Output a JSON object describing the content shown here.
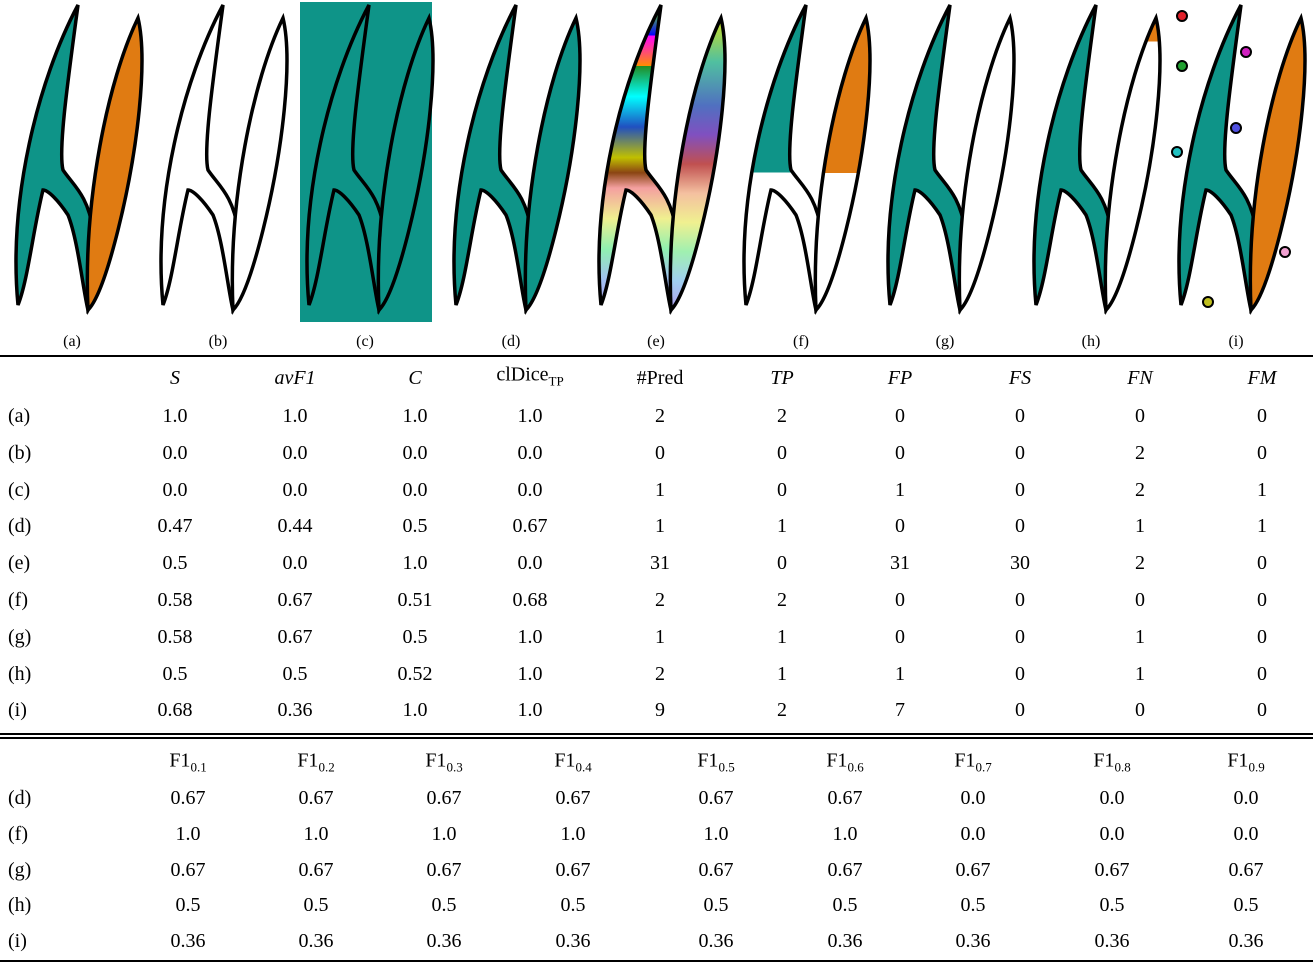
{
  "panels": [
    "(a)",
    "(b)",
    "(c)",
    "(d)",
    "(e)",
    "(f)",
    "(g)",
    "(h)",
    "(i)"
  ],
  "table1": {
    "header": [
      {
        "main": "S"
      },
      {
        "main": "avF1"
      },
      {
        "main": "C"
      },
      {
        "main": "clDice",
        "sub": "TP"
      },
      {
        "main": "#Pred"
      },
      {
        "main": "TP"
      },
      {
        "main": "FP"
      },
      {
        "main": "FS"
      },
      {
        "main": "FN"
      },
      {
        "main": "FM"
      }
    ],
    "rows": [
      [
        "(a)",
        "1.0",
        "1.0",
        "1.0",
        "1.0",
        "2",
        "2",
        "0",
        "0",
        "0",
        "0"
      ],
      [
        "(b)",
        "0.0",
        "0.0",
        "0.0",
        "0.0",
        "0",
        "0",
        "0",
        "0",
        "2",
        "0"
      ],
      [
        "(c)",
        "0.0",
        "0.0",
        "0.0",
        "0.0",
        "1",
        "0",
        "1",
        "0",
        "2",
        "1"
      ],
      [
        "(d)",
        "0.47",
        "0.44",
        "0.5",
        "0.67",
        "1",
        "1",
        "0",
        "0",
        "1",
        "1"
      ],
      [
        "(e)",
        "0.5",
        "0.0",
        "1.0",
        "0.0",
        "31",
        "0",
        "31",
        "30",
        "2",
        "0"
      ],
      [
        "(f)",
        "0.58",
        "0.67",
        "0.51",
        "0.68",
        "2",
        "2",
        "0",
        "0",
        "0",
        "0"
      ],
      [
        "(g)",
        "0.58",
        "0.67",
        "0.5",
        "1.0",
        "1",
        "1",
        "0",
        "0",
        "1",
        "0"
      ],
      [
        "(h)",
        "0.5",
        "0.5",
        "0.52",
        "1.0",
        "2",
        "1",
        "1",
        "0",
        "1",
        "0"
      ],
      [
        "(i)",
        "0.68",
        "0.36",
        "1.0",
        "1.0",
        "9",
        "2",
        "7",
        "0",
        "0",
        "0"
      ]
    ]
  },
  "table2": {
    "header": [
      {
        "main": "F1",
        "sub": "0.1"
      },
      {
        "main": "F1",
        "sub": "0.2"
      },
      {
        "main": "F1",
        "sub": "0.3"
      },
      {
        "main": "F1",
        "sub": "0.4"
      },
      {
        "main": "F1",
        "sub": "0.5"
      },
      {
        "main": "F1",
        "sub": "0.6"
      },
      {
        "main": "F1",
        "sub": "0.7"
      },
      {
        "main": "F1",
        "sub": "0.8"
      },
      {
        "main": "F1",
        "sub": "0.9"
      }
    ],
    "rows": [
      [
        "(d)",
        "0.67",
        "0.67",
        "0.67",
        "0.67",
        "0.67",
        "0.67",
        "0.0",
        "0.0",
        "0.0"
      ],
      [
        "(f)",
        "1.0",
        "1.0",
        "1.0",
        "1.0",
        "1.0",
        "1.0",
        "0.0",
        "0.0",
        "0.0"
      ],
      [
        "(g)",
        "0.67",
        "0.67",
        "0.67",
        "0.67",
        "0.67",
        "0.67",
        "0.67",
        "0.67",
        "0.67"
      ],
      [
        "(h)",
        "0.5",
        "0.5",
        "0.5",
        "0.5",
        "0.5",
        "0.5",
        "0.5",
        "0.5",
        "0.5"
      ],
      [
        "(i)",
        "0.36",
        "0.36",
        "0.36",
        "0.36",
        "0.36",
        "0.36",
        "0.36",
        "0.36",
        "0.36"
      ]
    ]
  }
}
